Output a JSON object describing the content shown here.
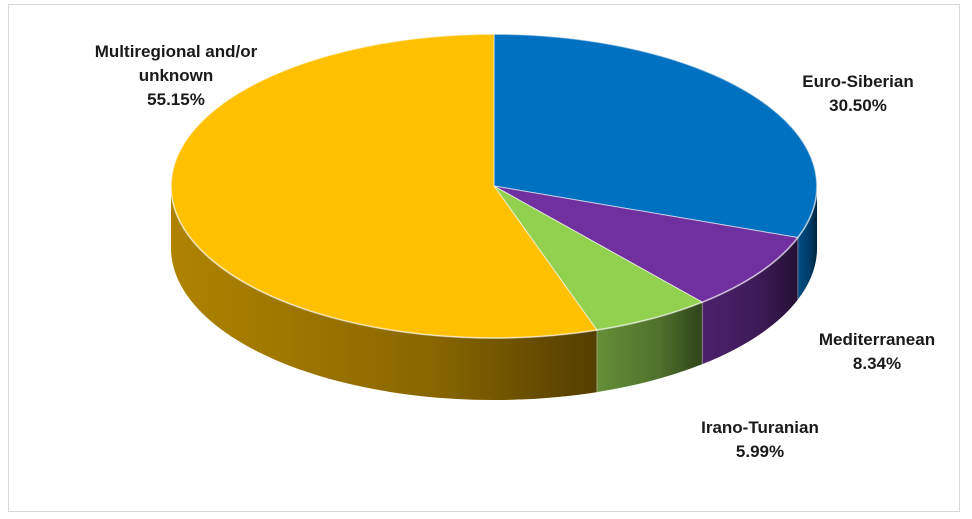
{
  "chart_data": {
    "type": "pie",
    "title": "",
    "start_angle_deg": 0,
    "direction": "clockwise",
    "slices": [
      {
        "label": "Euro-Siberian",
        "value": 30.5,
        "value_text": "30.50%",
        "color": "#0070C0"
      },
      {
        "label": "Mediterranean",
        "value": 8.34,
        "value_text": "8.34%",
        "color": "#7030A0"
      },
      {
        "label": "Irano-Turanian",
        "value": 5.99,
        "value_text": "5.99%",
        "color": "#92D050"
      },
      {
        "label": "Multiregional and/or\nunknown",
        "value": 55.15,
        "value_text": "55.15%",
        "color": "#FFC000"
      }
    ],
    "legend": "none",
    "data_labels": "outside"
  }
}
